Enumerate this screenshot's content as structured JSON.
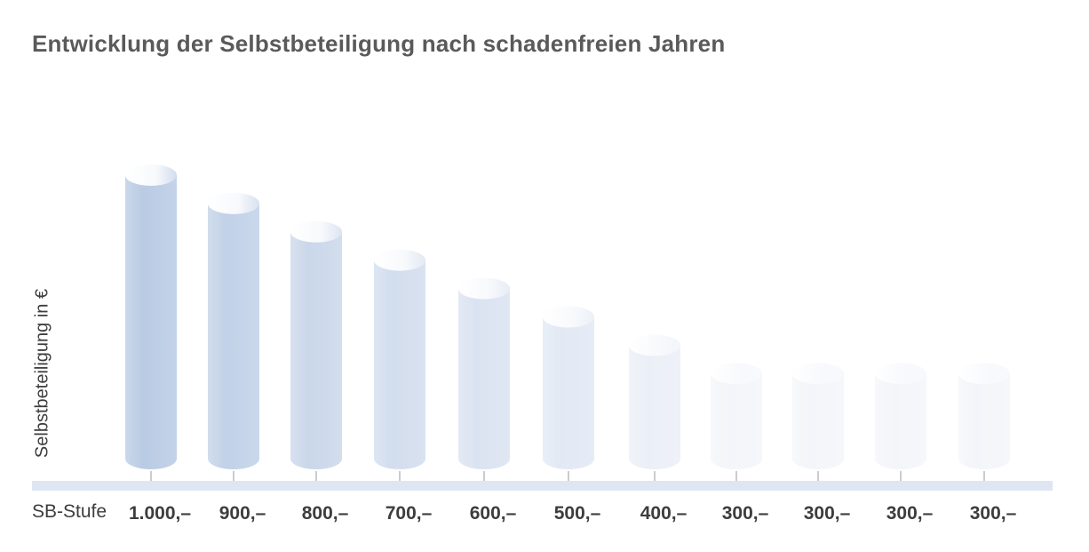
{
  "chart_data": {
    "type": "bar",
    "title": "Entwicklung der Selbstbeteiligung nach schadenfreien Jahren",
    "ylabel": "Selbstbeteiligung in €",
    "xlabel": "SB-Stufe",
    "categories": [
      "1.000,–",
      "900,–",
      "800,–",
      "700,–",
      "600,–",
      "500,–",
      "400,–",
      "300,–",
      "300,–",
      "300,–",
      "300,–"
    ],
    "values": [
      1000,
      900,
      800,
      700,
      600,
      500,
      400,
      300,
      300,
      300,
      300
    ],
    "ylim": [
      0,
      1000
    ],
    "grid": false,
    "legend": "none",
    "colors": {
      "bar_dark": "#b9cbe4",
      "bar_light": "#f3f5fa",
      "bar_top": "#ffffff",
      "axis_band": "#dde6f2",
      "tick": "#9a9a9a",
      "text": "#3d3d3d"
    }
  }
}
